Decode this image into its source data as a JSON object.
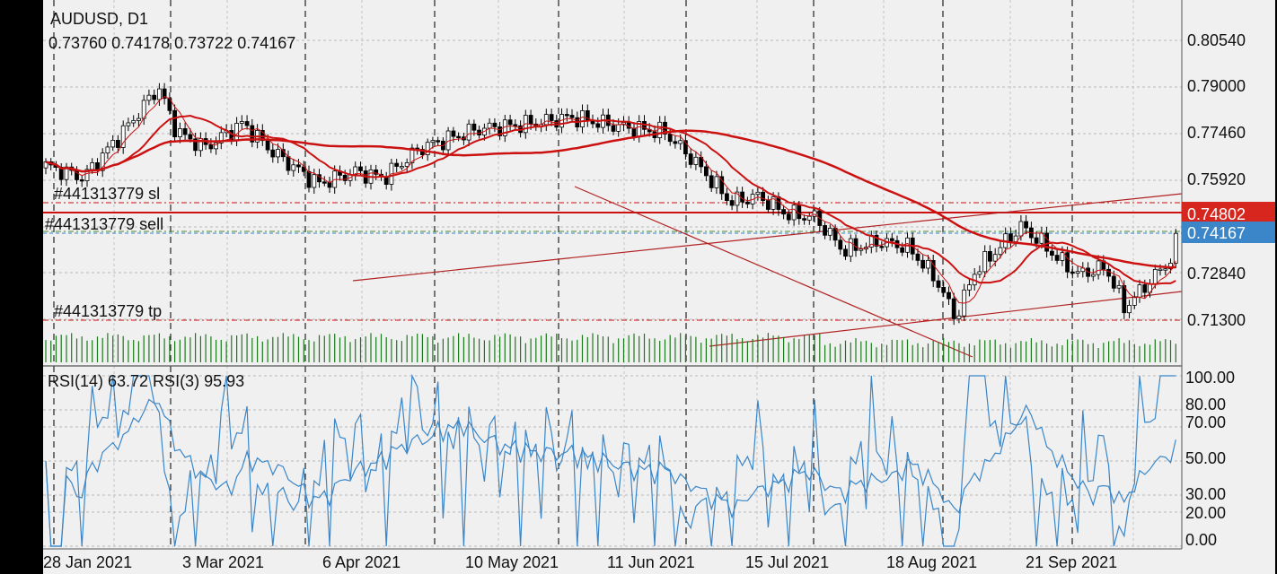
{
  "symbol": "AUDUSD, D1",
  "ohlc": "0.73760 0.74178 0.73722 0.74167",
  "order": {
    "sl_label": "#441313779 sl",
    "sell_label": "#441313779 sell",
    "tp_label": "#441313779 tp",
    "sl_price": "0.74802",
    "bid_price": "0.74167"
  },
  "indicator_label": "RSI(14) 63.72 RSI(3) 95.93",
  "colors": {
    "background": "#f0f0f0",
    "bull": "#ffffff",
    "bear": "#000000",
    "ma": "#cc1111",
    "volume": "#1a7a1a",
    "rsi": "#3a86c8",
    "sl_tag": "#d7261e",
    "bid_tag": "#3a86c8"
  },
  "chart_data": [
    {
      "type": "candlestick",
      "title": "AUDUSD, D1",
      "x_labels": [
        "28 Jan 2021",
        "3 Mar 2021",
        "6 Apr 2021",
        "10 May 2021",
        "11 Jun 2021",
        "15 Jul 2021",
        "18 Aug 2021",
        "21 Sep 2021"
      ],
      "y_ticks": [
        "0.80540",
        "0.79000",
        "0.77460",
        "0.75920",
        "0.72840",
        "0.71300"
      ],
      "ylim": [
        0.7085,
        0.8115
      ],
      "last_close": 0.74167,
      "sl_level": 0.74802,
      "tp_level": 0.713,
      "moving_averages": [
        "fast",
        "medium",
        "slow"
      ],
      "volume_histogram": true,
      "grid": true
    },
    {
      "type": "line",
      "title": "RSI(14) 63.72 RSI(3) 95.93",
      "series": [
        {
          "name": "RSI(14)",
          "last": 63.72
        },
        {
          "name": "RSI(3)",
          "last": 95.93
        }
      ],
      "y_ticks": [
        "100.00",
        "80.00",
        "70.00",
        "50.00",
        "30.00",
        "20.00",
        "0.00"
      ],
      "ylim": [
        0,
        100
      ],
      "grid": true
    }
  ]
}
